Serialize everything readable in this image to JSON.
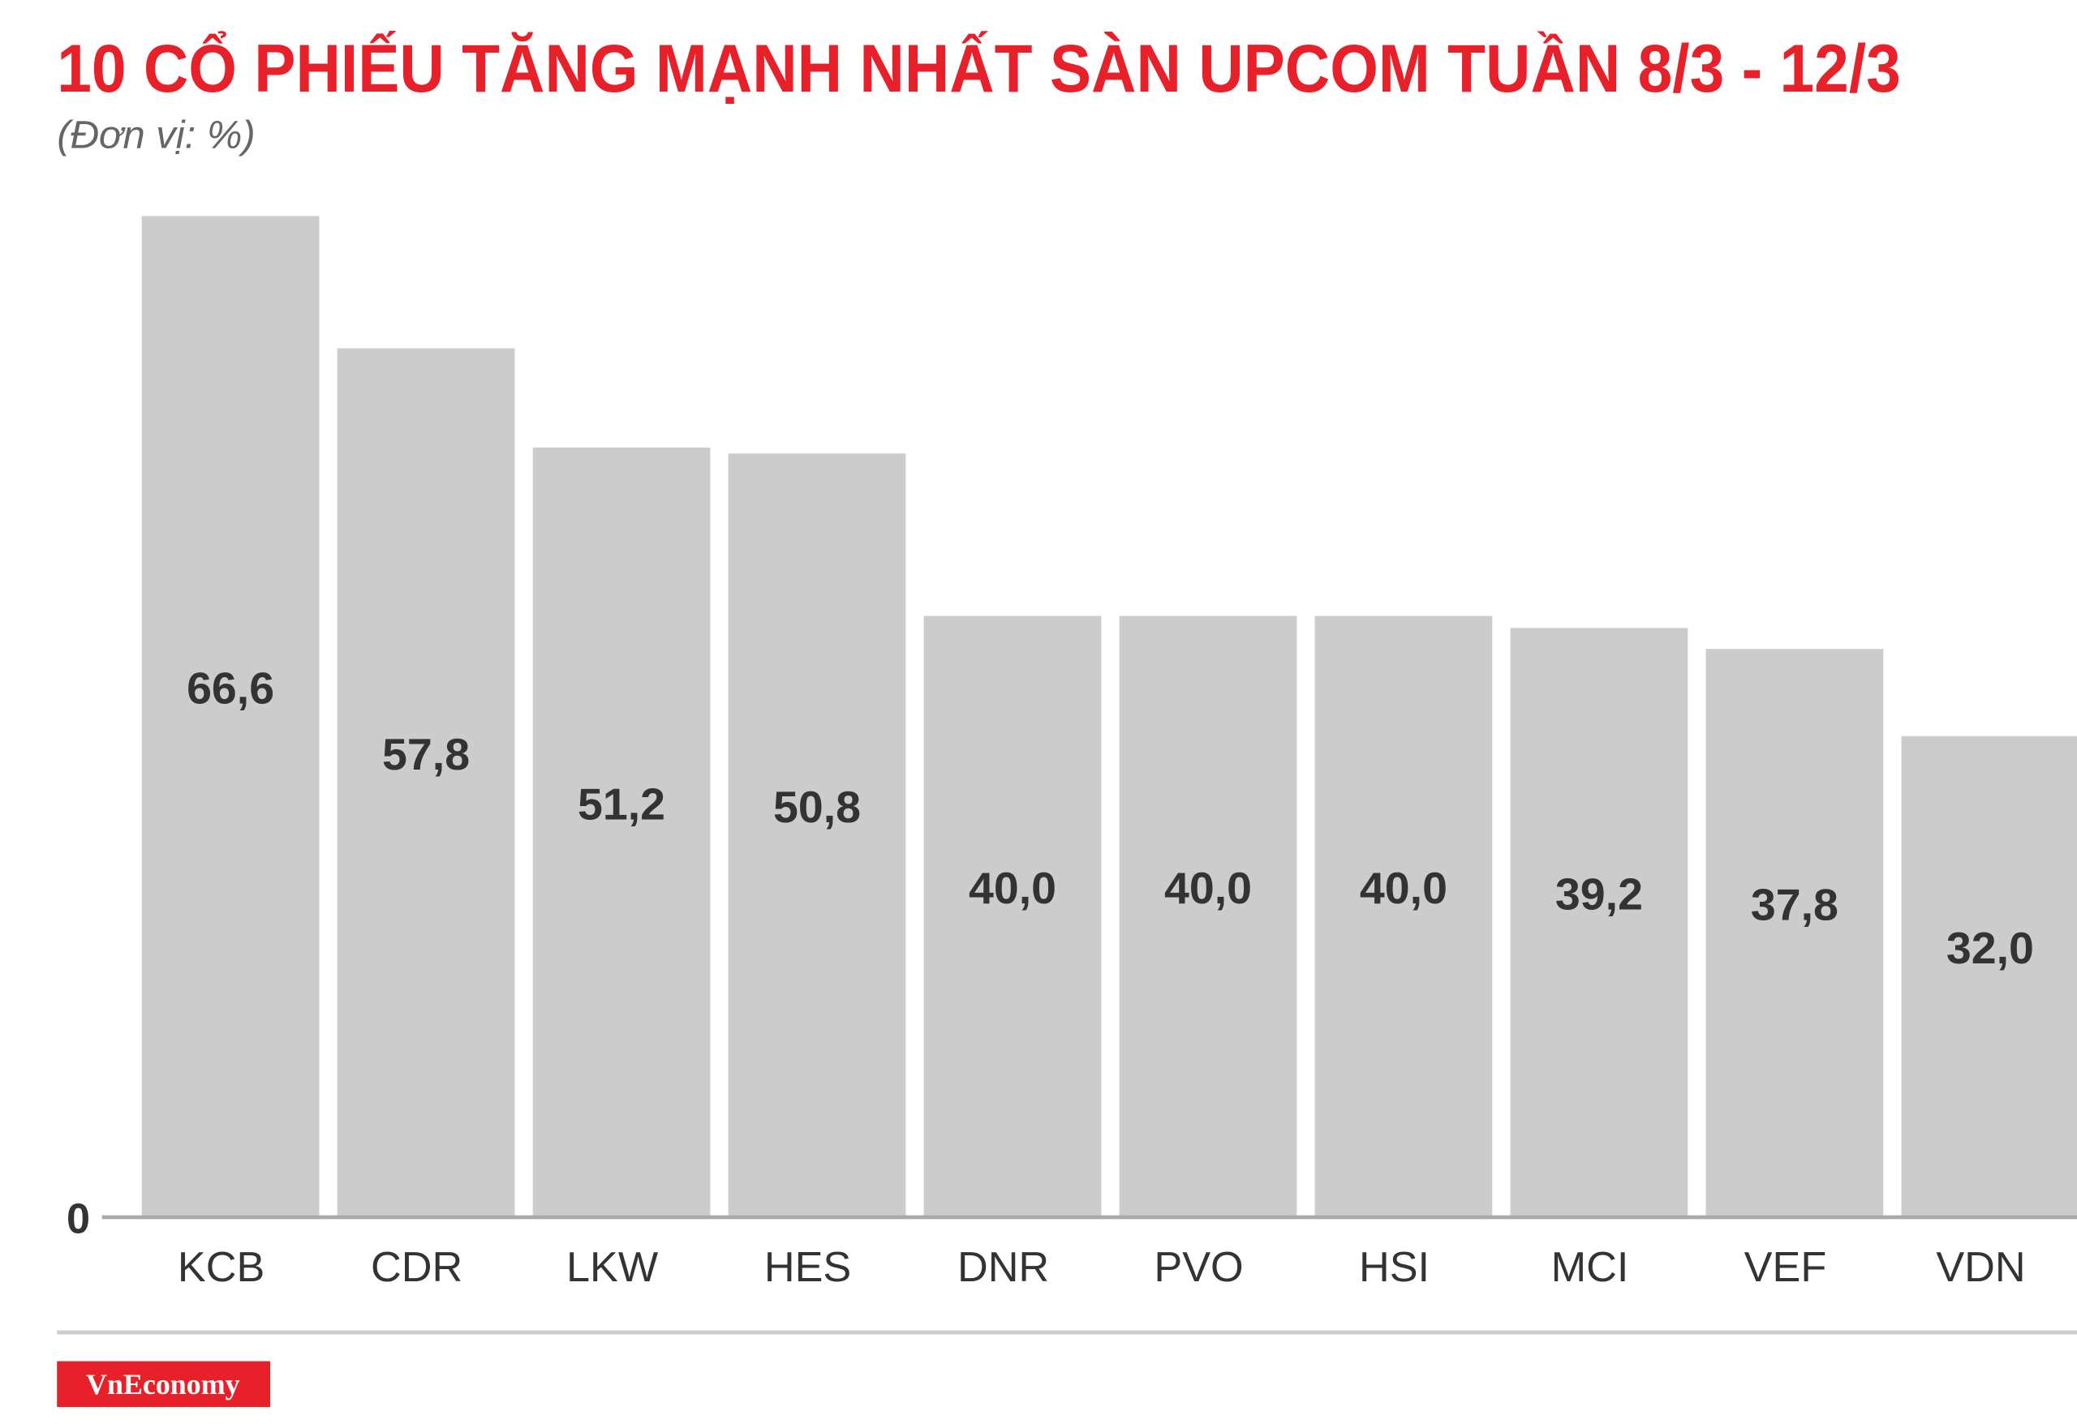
{
  "chart_data": {
    "type": "bar",
    "title": "10 CỔ PHIẾU TĂNG MẠNH NHẤT SÀN UPCOM TUẦN 8/3 - 12/3",
    "subtitle": "(Đơn vị: %)",
    "categories": [
      "KCB",
      "CDR",
      "LKW",
      "HES",
      "DNR",
      "PVO",
      "HSI",
      "MCI",
      "VEF",
      "VDN"
    ],
    "values": [
      66.6,
      57.8,
      51.2,
      50.8,
      40.0,
      40.0,
      40.0,
      39.2,
      37.8,
      32.0
    ],
    "value_labels": [
      "66,6",
      "57,8",
      "51,2",
      "50,8",
      "40,0",
      "40,0",
      "40,0",
      "39,2",
      "37,8",
      "32,0"
    ],
    "color": "#cccccc",
    "ylim": [
      0,
      70
    ],
    "yticks": [
      0
    ],
    "source": "VnEconomy"
  }
}
